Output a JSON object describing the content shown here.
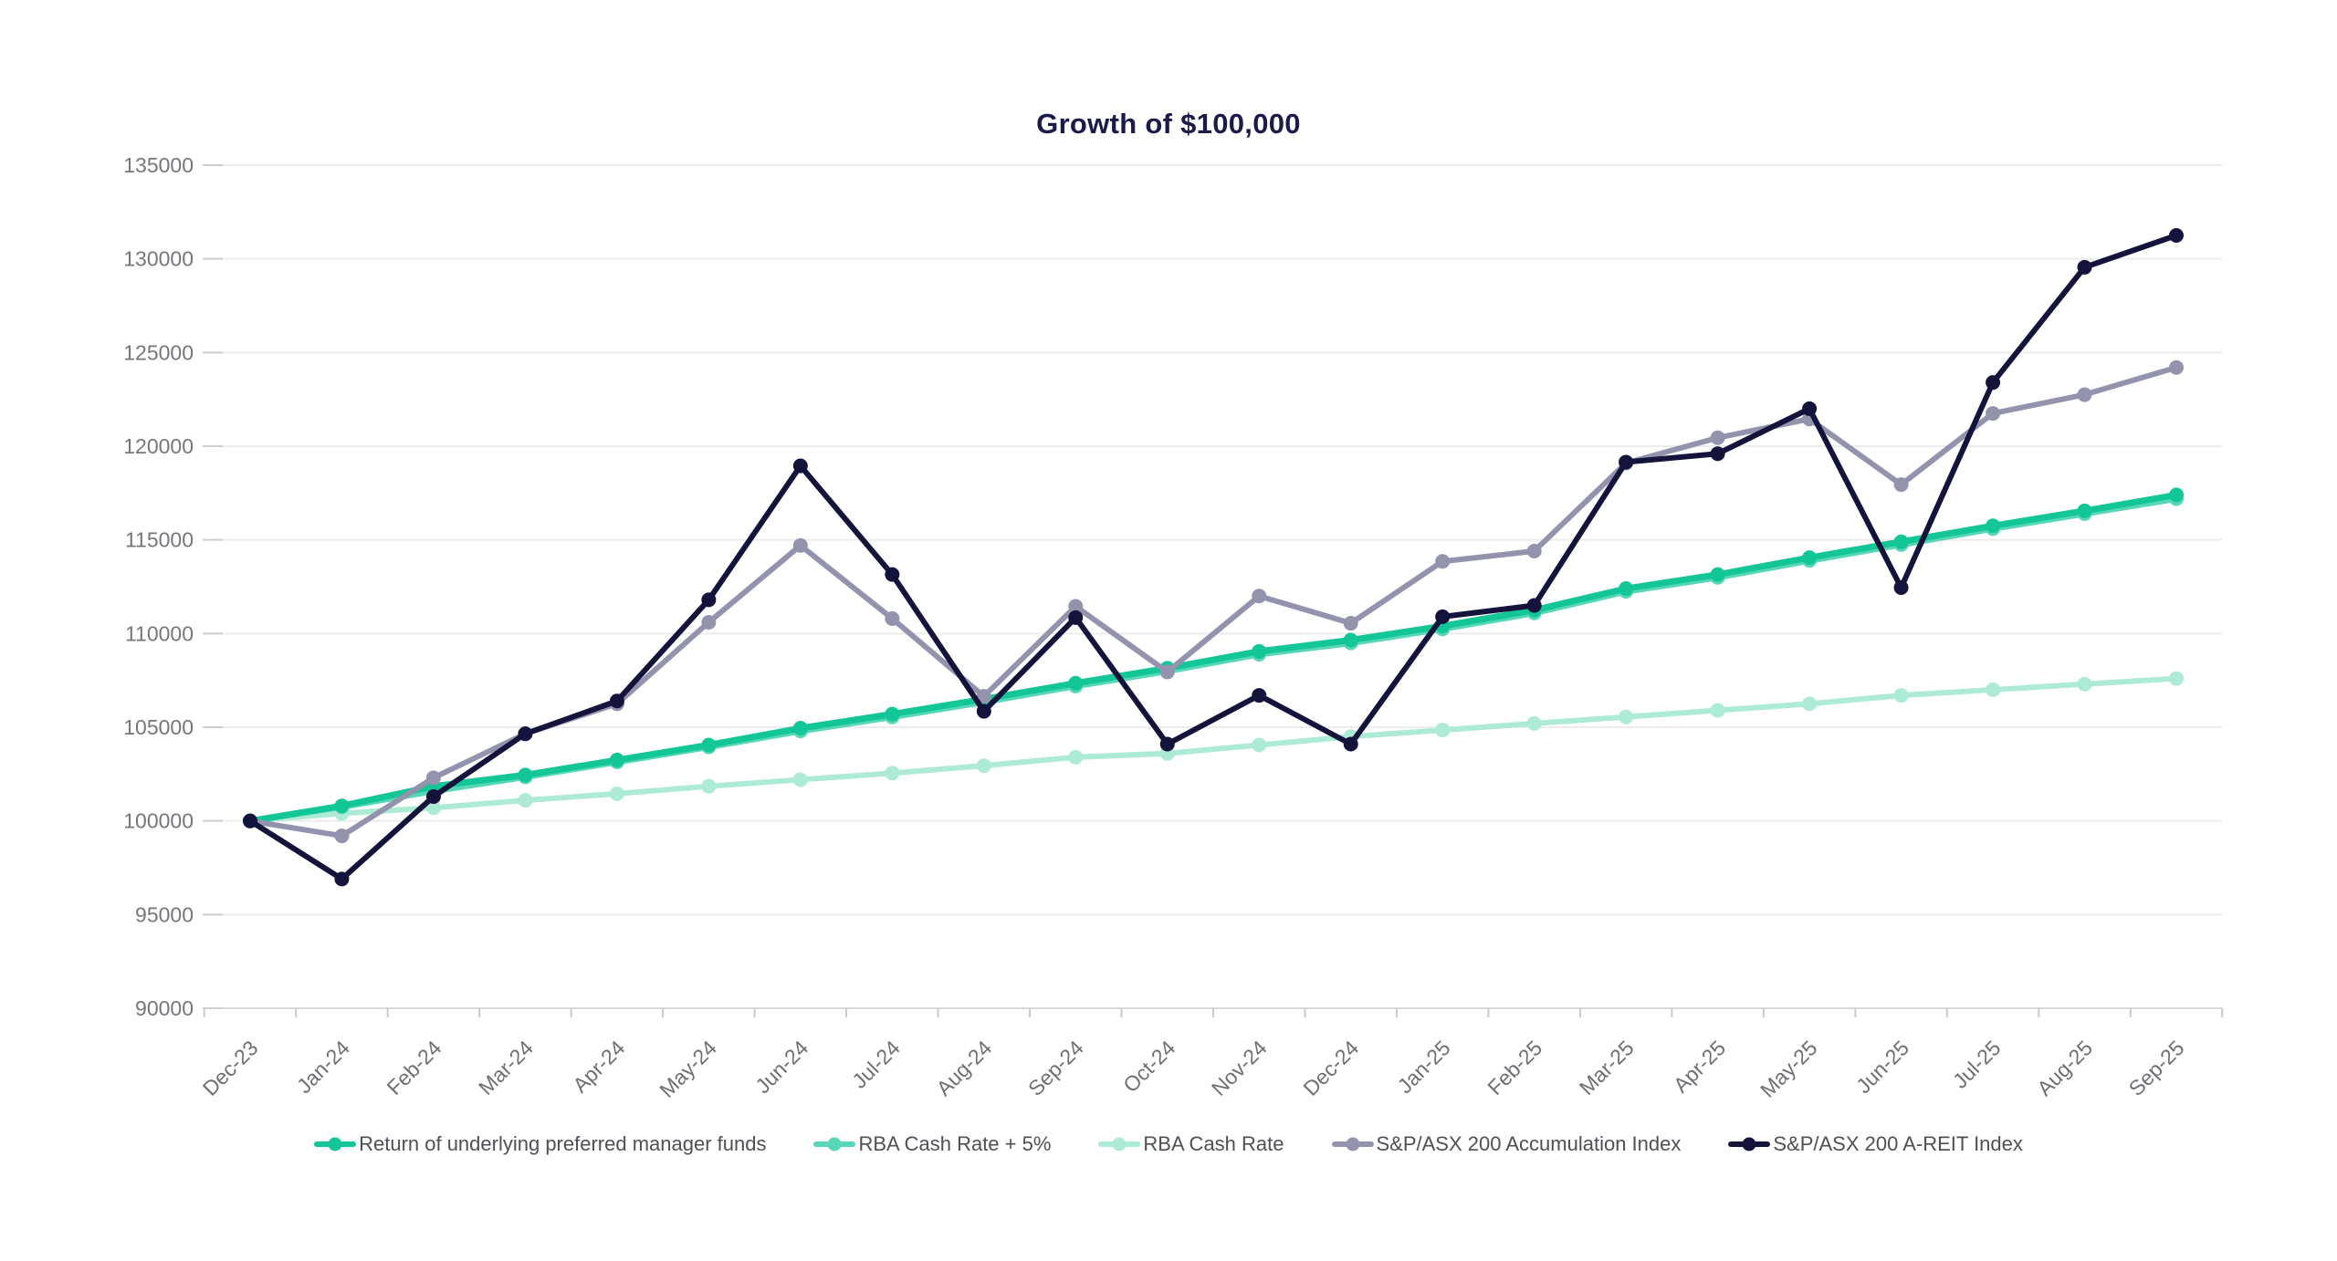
{
  "chart": {
    "title": "Growth of $100,000",
    "title_color": "#1b1b4b"
  },
  "chart_data": {
    "type": "line",
    "title": "Growth of $100,000",
    "xlabel": "",
    "ylabel": "",
    "categories": [
      "Dec-23",
      "Jan-24",
      "Feb-24",
      "Mar-24",
      "Apr-24",
      "May-24",
      "Jun-24",
      "Jul-24",
      "Aug-24",
      "Sep-24",
      "Oct-24",
      "Nov-24",
      "Dec-24",
      "Jan-25",
      "Feb-25",
      "Mar-25",
      "Apr-25",
      "May-25",
      "Jun-25",
      "Jul-25",
      "Aug-25",
      "Sep-25"
    ],
    "ylim": [
      90000,
      135000
    ],
    "ytick_step": 5000,
    "ytick_labels": [
      "90000",
      "95000",
      "100000",
      "105000",
      "110000",
      "115000",
      "120000",
      "125000",
      "130000",
      "135000"
    ],
    "grid": "horizontal",
    "legend_position": "bottom",
    "series": [
      {
        "name": "Return of underlying preferred manager funds",
        "color": "#13c697",
        "z": 3,
        "values": [
          100000,
          100800,
          101850,
          102450,
          103250,
          104050,
          104950,
          105700,
          106500,
          107350,
          108150,
          109050,
          109650,
          110400,
          111250,
          112400,
          113150,
          114050,
          114900,
          115750,
          116550,
          117400
        ]
      },
      {
        "name": "RBA Cash Rate + 5%",
        "color": "#58d7b8",
        "z": 2,
        "values": [
          100000,
          100750,
          101600,
          102350,
          103150,
          103950,
          104800,
          105550,
          106350,
          107200,
          108000,
          108900,
          109500,
          110250,
          111100,
          112250,
          113000,
          113900,
          114750,
          115600,
          116400,
          117200
        ]
      },
      {
        "name": "RBA Cash Rate",
        "color": "#adebd5",
        "z": 1,
        "values": [
          100000,
          100400,
          100700,
          101100,
          101450,
          101850,
          102200,
          102550,
          102950,
          103400,
          103600,
          104050,
          104500,
          104850,
          105200,
          105550,
          105900,
          106250,
          106700,
          107000,
          107300,
          107600
        ]
      },
      {
        "name": "S&P/ASX 200 Accumulation Index",
        "color": "#9393ae",
        "z": 4,
        "values": [
          100000,
          99200,
          102300,
          104650,
          106250,
          110600,
          114700,
          110800,
          106650,
          111450,
          107950,
          112000,
          110550,
          113850,
          114400,
          119100,
          120450,
          121450,
          117950,
          121750,
          122750,
          124200
        ]
      },
      {
        "name": "S&P/ASX 200 A-REIT Index",
        "color": "#13133b",
        "z": 5,
        "values": [
          100000,
          96900,
          101300,
          104650,
          106400,
          111800,
          118950,
          113150,
          105850,
          110850,
          104100,
          106700,
          104100,
          110900,
          111500,
          119150,
          119600,
          122000,
          112450,
          123400,
          129550,
          131250
        ]
      }
    ]
  }
}
